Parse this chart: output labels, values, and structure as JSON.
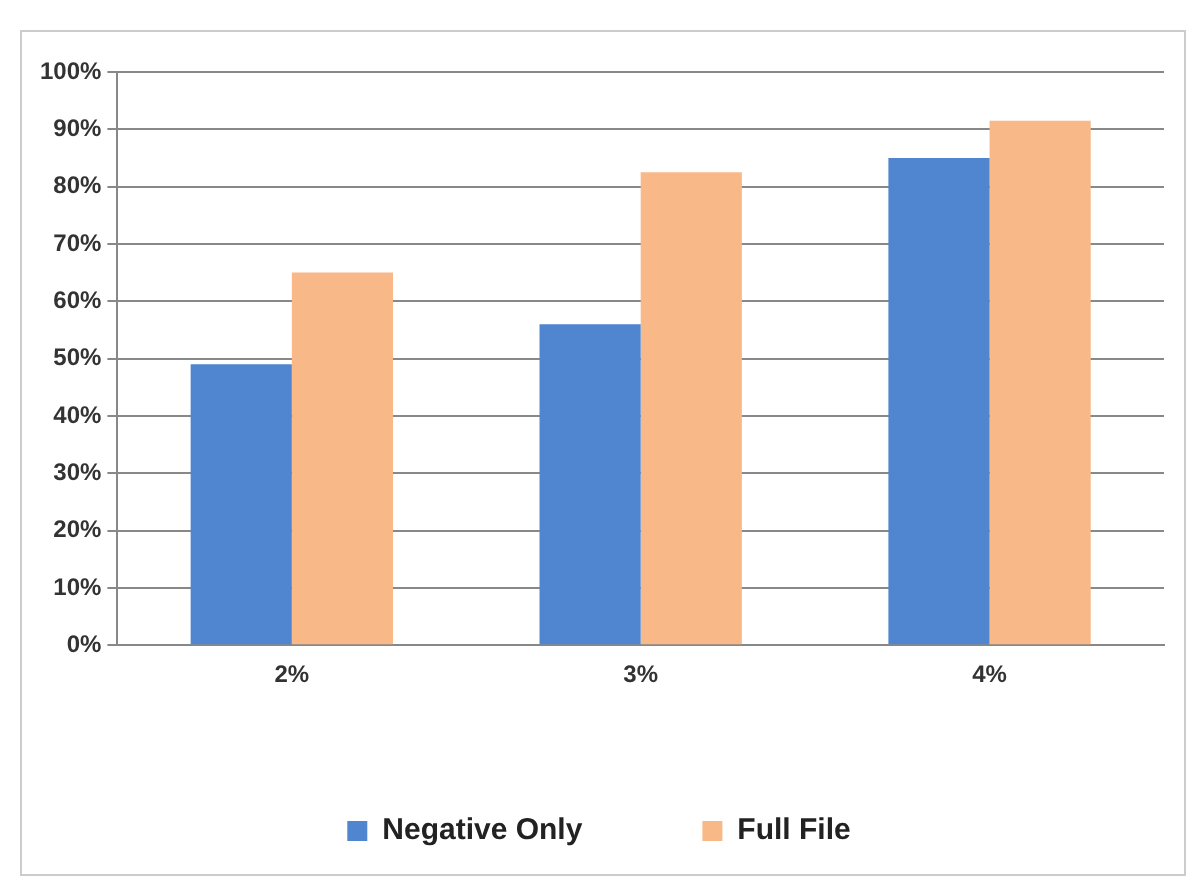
{
  "chart_data": {
    "type": "bar",
    "categories": [
      "2%",
      "3%",
      "4%"
    ],
    "series": [
      {
        "name": "Negative Only",
        "color": "#4f86cf",
        "values": [
          49,
          56,
          85
        ]
      },
      {
        "name": "Full File",
        "color": "#f8b888",
        "values": [
          65,
          82.5,
          91.5
        ]
      }
    ],
    "ylim": [
      0,
      100
    ],
    "yticks": [
      {
        "value": 0,
        "label": "0%"
      },
      {
        "value": 10,
        "label": "10%"
      },
      {
        "value": 20,
        "label": "20%"
      },
      {
        "value": 30,
        "label": "30%"
      },
      {
        "value": 40,
        "label": "40%"
      },
      {
        "value": 50,
        "label": "50%"
      },
      {
        "value": 60,
        "label": "60%"
      },
      {
        "value": 70,
        "label": "70%"
      },
      {
        "value": 80,
        "label": "80%"
      },
      {
        "value": 90,
        "label": "90%"
      },
      {
        "value": 100,
        "label": "100%"
      }
    ],
    "grid": "y",
    "legend": "bottom"
  }
}
